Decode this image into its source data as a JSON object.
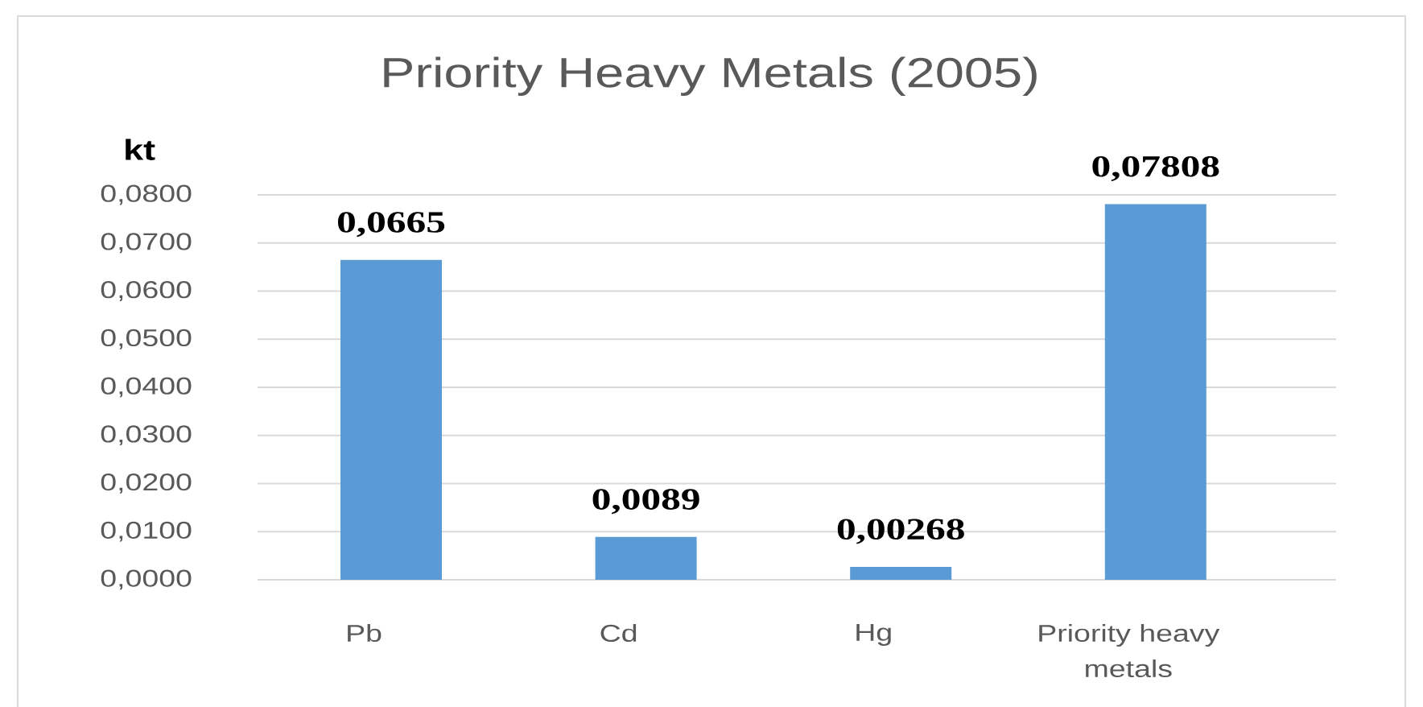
{
  "chart_data": {
    "type": "bar",
    "title": "Priority Heavy Metals (2005)",
    "ylabel": "kt",
    "categories": [
      "Pb",
      "Cd",
      "Hg",
      "Priority heavy metals"
    ],
    "values": [
      0.0665,
      0.0089,
      0.00268,
      0.07808
    ],
    "value_labels": [
      "0,0665",
      "0,0089",
      "0,00268",
      "0,07808"
    ],
    "color": "#5b9bd5",
    "ylim": [
      0,
      0.08
    ],
    "yticks": [
      {
        "value": 0,
        "label": "0,0000"
      },
      {
        "value": 0.01,
        "label": "0,0100"
      },
      {
        "value": 0.02,
        "label": "0,0200"
      },
      {
        "value": 0.03,
        "label": "0,0300"
      },
      {
        "value": 0.04,
        "label": "0,0400"
      },
      {
        "value": 0.05,
        "label": "0,0500"
      },
      {
        "value": 0.06,
        "label": "0,0600"
      },
      {
        "value": 0.07,
        "label": "0,0700"
      },
      {
        "value": 0.08,
        "label": "0,0800"
      }
    ],
    "grid": "y"
  }
}
